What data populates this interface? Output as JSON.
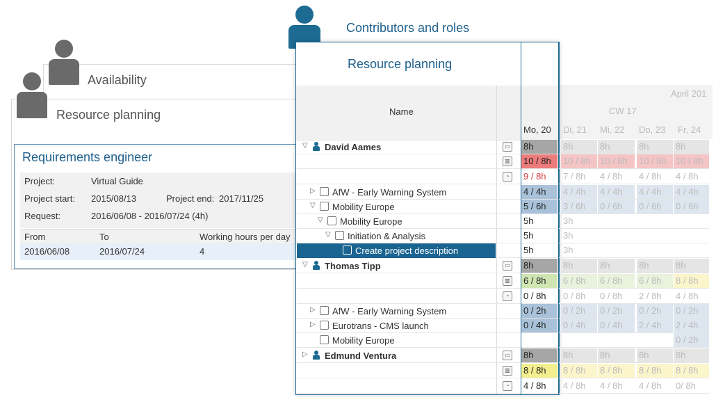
{
  "colors": {
    "accent": "#1d6a92",
    "selection": "#1a6491",
    "over": "#f5c4c4",
    "over_current": "#ec7b7b",
    "booked": "#dde6ef",
    "booked_current": "#a9c2d9",
    "total": "#e5e5e5",
    "total_current": "#a6a6a6",
    "ok": "#e8f2dc",
    "ok_current": "#cfe6b3",
    "near": "#fbf5cc",
    "near_current": "#f3ef8e"
  },
  "back_panels": {
    "contributors_title": "Contributors and roles",
    "availability_title": "Availability",
    "resource_planning_title": "Resource planning"
  },
  "requirements": {
    "title": "Requirements engineer",
    "project_label": "Project:",
    "project_value": "Virtual Guide",
    "start_label": "Project start:",
    "start_value": "2015/08/13",
    "end_label": "Project end:",
    "end_value": "2017/11/25",
    "request_label": "Request:",
    "request_value": "2016/06/08 - 2016/07/24 (4h)",
    "columns": [
      "From",
      "To",
      "Working hours per day"
    ],
    "row": [
      "2016/06/08",
      "2016/07/24",
      "4"
    ]
  },
  "resource_planning": {
    "title": "Resource planning",
    "name_header": "Name",
    "month": "April 201",
    "week": "CW 17",
    "days": [
      "Mo, 20",
      "Di, 21",
      "Mi, 22",
      "Do, 23",
      "Fr, 24"
    ]
  },
  "rows": [
    {
      "label": "David Aames",
      "bold": true,
      "indent": 0,
      "tri": "▽",
      "icon": "person-icon",
      "type": "capacity-icon",
      "cells": [
        [
          "8h",
          "total"
        ],
        [
          "8h",
          "total"
        ],
        [
          "8h",
          "total"
        ],
        [
          "8h",
          "total"
        ],
        [
          "8h",
          "total"
        ]
      ]
    },
    {
      "label": "",
      "indent": 0,
      "type": "workload-icon",
      "cells": [
        [
          "10 / 8h",
          "over"
        ],
        [
          "10 / 8h",
          "over"
        ],
        [
          "10 / 8h",
          "over"
        ],
        [
          "10 / 8h",
          "over"
        ],
        [
          "10 / 8h",
          "over"
        ]
      ]
    },
    {
      "label": "",
      "indent": 0,
      "type": "clock-icon",
      "cells": [
        [
          "9 / 8h",
          "red-text"
        ],
        [
          "7 / 8h",
          "plain"
        ],
        [
          "4 / 8h",
          "plain"
        ],
        [
          "4 / 8h",
          "plain"
        ],
        [
          "4 / 8h",
          "plain"
        ]
      ]
    },
    {
      "label": "AfW - Early Warning System",
      "indent": 1,
      "tri": "▷",
      "icon": "program-icon",
      "cells": [
        [
          "4 / 4h",
          "booked"
        ],
        [
          "4 / 4h",
          "booked"
        ],
        [
          "4 / 4h",
          "booked"
        ],
        [
          "4 / 4h",
          "booked"
        ],
        [
          "4 / 4h",
          "booked"
        ]
      ]
    },
    {
      "label": "Mobility Europe",
      "indent": 1,
      "tri": "▽",
      "icon": "portfolio-icon",
      "cells": [
        [
          "5 / 6h",
          "booked"
        ],
        [
          "3 / 6h",
          "booked"
        ],
        [
          "0 / 6h",
          "booked"
        ],
        [
          "0 / 6h",
          "booked"
        ],
        [
          "0 / 6h",
          "booked"
        ]
      ]
    },
    {
      "label": "Mobility Europe",
      "indent": 2,
      "tri": "▽",
      "icon": "project-icon",
      "cells": [
        [
          "5h",
          "plain"
        ],
        [
          "3h",
          "plain"
        ]
      ]
    },
    {
      "label": "Initiation & Analysis",
      "indent": 3,
      "tri": "▽",
      "icon": "phase-icon",
      "cells": [
        [
          "5h",
          "plain"
        ],
        [
          "3h",
          "plain"
        ]
      ]
    },
    {
      "label": "Create project description",
      "indent": 4,
      "icon": "task-icon",
      "selected": true,
      "cells": [
        [
          "5h",
          "plain"
        ],
        [
          "3h",
          "plain"
        ]
      ]
    },
    {
      "label": "Thomas Tipp",
      "bold": true,
      "indent": 0,
      "tri": "▽",
      "icon": "person-icon",
      "type": "capacity-icon",
      "cells": [
        [
          "8h",
          "total"
        ],
        [
          "8h",
          "total"
        ],
        [
          "8h",
          "total"
        ],
        [
          "8h",
          "total"
        ],
        [
          "8h",
          "total"
        ]
      ]
    },
    {
      "label": "",
      "indent": 0,
      "type": "workload-icon",
      "cells": [
        [
          "6 / 8h",
          "ok"
        ],
        [
          "6 / 8h",
          "ok"
        ],
        [
          "6 / 8h",
          "ok"
        ],
        [
          "6 / 8h",
          "ok"
        ],
        [
          "8 / 8h",
          "near"
        ]
      ]
    },
    {
      "label": "",
      "indent": 0,
      "type": "clock-icon",
      "cells": [
        [
          "0 / 8h",
          "plain"
        ],
        [
          "0 / 8h",
          "plain"
        ],
        [
          "0 / 8h",
          "plain"
        ],
        [
          "2 / 8h",
          "plain"
        ],
        [
          "4 / 8h",
          "plain"
        ]
      ]
    },
    {
      "label": "AfW - Early Warning System",
      "indent": 1,
      "tri": "▷",
      "icon": "program-icon",
      "cells": [
        [
          "0 / 2h",
          "booked"
        ],
        [
          "0 / 2h",
          "booked"
        ],
        [
          "0 / 2h",
          "booked"
        ],
        [
          "0 / 2h",
          "booked"
        ],
        [
          "0 / 2h",
          "booked"
        ]
      ]
    },
    {
      "label": "Eurotrans - CMS launch",
      "indent": 1,
      "tri": "▷",
      "icon": "project-icon",
      "cells": [
        [
          "0 / 4h",
          "booked"
        ],
        [
          "0 / 4h",
          "booked"
        ],
        [
          "0 / 4h",
          "booked"
        ],
        [
          "2 / 4h",
          "booked"
        ],
        [
          "2 / 4h",
          "booked"
        ]
      ]
    },
    {
      "label": "Mobility Europe",
      "indent": 1,
      "icon": "portfolio-icon",
      "cells": [
        [
          "",
          "none"
        ],
        [
          "",
          "none"
        ],
        [
          "",
          "none"
        ],
        [
          "",
          "none"
        ],
        [
          "0 / 2h",
          "booked"
        ]
      ]
    },
    {
      "label": "Edmund Ventura",
      "bold": true,
      "indent": 0,
      "tri": "▷",
      "icon": "person-icon",
      "type": "capacity-icon",
      "cells": [
        [
          "8h",
          "total"
        ],
        [
          "8h",
          "total"
        ],
        [
          "8h",
          "total"
        ],
        [
          "8h",
          "total"
        ],
        [
          "8h",
          "total"
        ]
      ]
    },
    {
      "label": "",
      "indent": 0,
      "type": "workload-icon",
      "cells": [
        [
          "8 / 8h",
          "near"
        ],
        [
          "8 / 8h",
          "near"
        ],
        [
          "8 / 8h",
          "near"
        ],
        [
          "8 / 8h",
          "near"
        ],
        [
          "8 / 8h",
          "near"
        ]
      ]
    },
    {
      "label": "",
      "indent": 0,
      "type": "clock-icon",
      "cells": [
        [
          "4 / 8h",
          "plain"
        ],
        [
          "4 / 8h",
          "plain"
        ],
        [
          "4 / 8h",
          "plain"
        ],
        [
          "4 / 8h",
          "plain"
        ],
        [
          "0/ 8h",
          "plain"
        ]
      ]
    }
  ]
}
